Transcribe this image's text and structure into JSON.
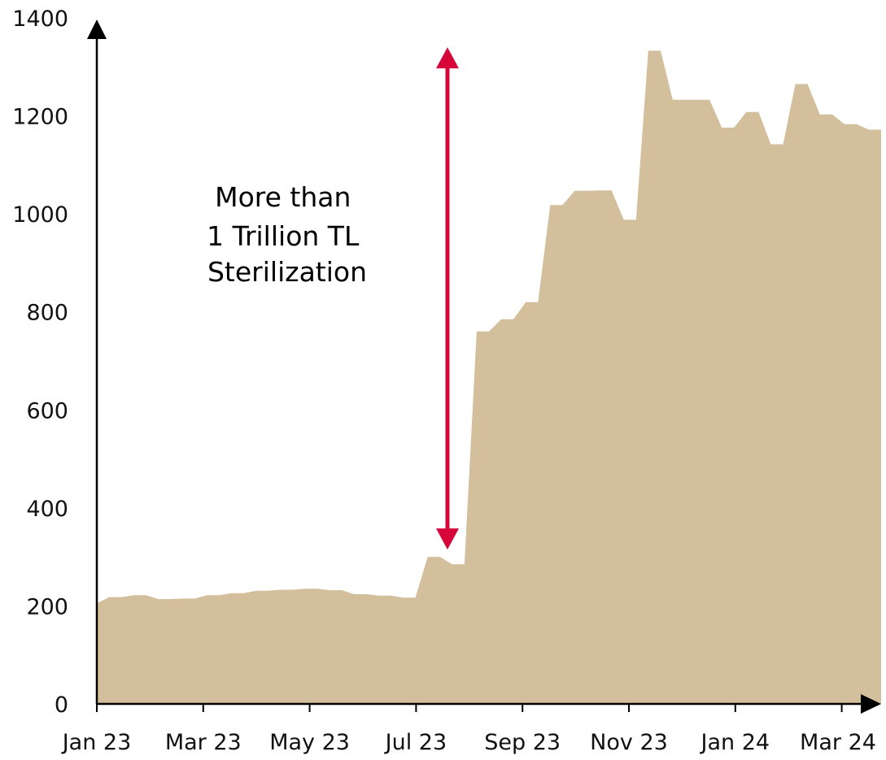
{
  "chart_data": {
    "type": "area",
    "title": "",
    "xlabel": "",
    "ylabel": "",
    "ylim": [
      0,
      1400
    ],
    "y_ticks": [
      "0",
      "200",
      "400",
      "600",
      "800",
      "1000",
      "1200",
      "1400"
    ],
    "x_ticks": [
      "Jan 23",
      "Mar 23",
      "May 23",
      "Jul 23",
      "Sep 23",
      "Nov 23",
      "Jan 24",
      "Mar 24"
    ],
    "grid": false,
    "legend": "none",
    "fill_color": "#d4bf9c",
    "series": [
      {
        "values": [
          205,
          218,
          218,
          222,
          222,
          214,
          214,
          215,
          215,
          222,
          222,
          226,
          226,
          231,
          231,
          233,
          233,
          235,
          235,
          232,
          232,
          224,
          224,
          221,
          221,
          217,
          217,
          300,
          300,
          285,
          285,
          760,
          760,
          785,
          785,
          820,
          820,
          1018,
          1018,
          1047,
          1047,
          1048,
          1048,
          988,
          988,
          1333,
          1333,
          1233,
          1233,
          1233,
          1233,
          1176,
          1176,
          1208,
          1208,
          1142,
          1142,
          1265,
          1265,
          1203,
          1203,
          1183,
          1183,
          1172,
          1172
        ]
      }
    ],
    "annotation": {
      "lines": [
        "More than",
        "1 Trillion TL",
        "Sterilization"
      ],
      "arrow_range": [
        315,
        1340
      ],
      "arrow_color": "#d7063a"
    }
  }
}
